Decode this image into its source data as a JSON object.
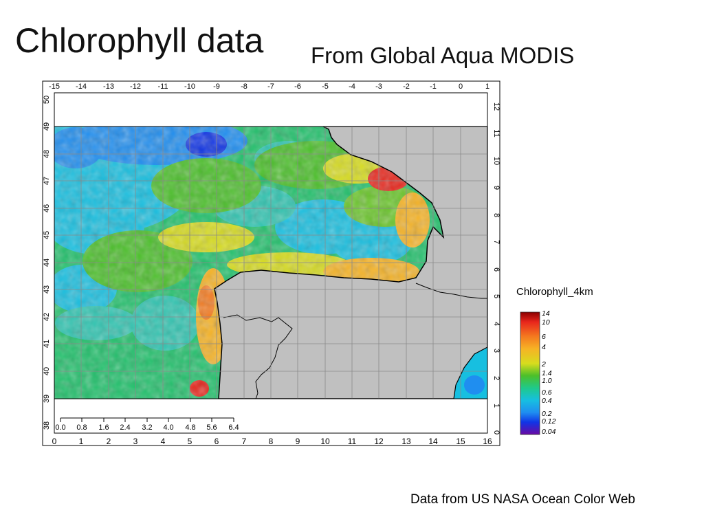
{
  "slide": {
    "title": "Chlorophyll data",
    "subtitle": "From Global Aqua MODIS",
    "credit": "Data from US NASA Ocean Color Web"
  },
  "map": {
    "top_axis_labels": [
      "-15",
      "-14",
      "-13",
      "-12",
      "-11",
      "-10",
      "-9",
      "-8",
      "-7",
      "-6",
      "-5",
      "-4",
      "-3",
      "-2",
      "-1",
      "0",
      "1"
    ],
    "bottom_axis_labels": [
      "0",
      "1",
      "2",
      "3",
      "4",
      "5",
      "6",
      "7",
      "8",
      "9",
      "10",
      "11",
      "12",
      "13",
      "14",
      "15",
      "16"
    ],
    "left_axis_labels": [
      "50",
      "49",
      "48",
      "47",
      "46",
      "45",
      "44",
      "43",
      "42",
      "41",
      "40",
      "39",
      "38"
    ],
    "right_axis_labels": [
      "12",
      "11",
      "10",
      "9",
      "8",
      "7",
      "6",
      "5",
      "4",
      "3",
      "2",
      "1",
      "0"
    ],
    "scale_bar_labels": [
      "0.0",
      "0.8",
      "1.6",
      "2.4",
      "3.2",
      "4.0",
      "4.8",
      "5.6",
      "6.4"
    ],
    "land_color": "#c0c0c0",
    "grid_color": "#8a8a8a"
  },
  "colorbar": {
    "title": "Chlorophyll_4km",
    "tick_labels": [
      "14",
      "10",
      "6",
      "4",
      "2",
      "1.4",
      "1.0",
      "0.6",
      "0.4",
      "0.2",
      "0.12",
      "0.04"
    ],
    "colors": [
      "#8b0000",
      "#e8261c",
      "#f47a1f",
      "#f6b325",
      "#d7dc1e",
      "#4bbf2a",
      "#1fc98a",
      "#17bfe0",
      "#1f8ef0",
      "#1034e6",
      "#3a16c8",
      "#6a0aa3"
    ]
  }
}
